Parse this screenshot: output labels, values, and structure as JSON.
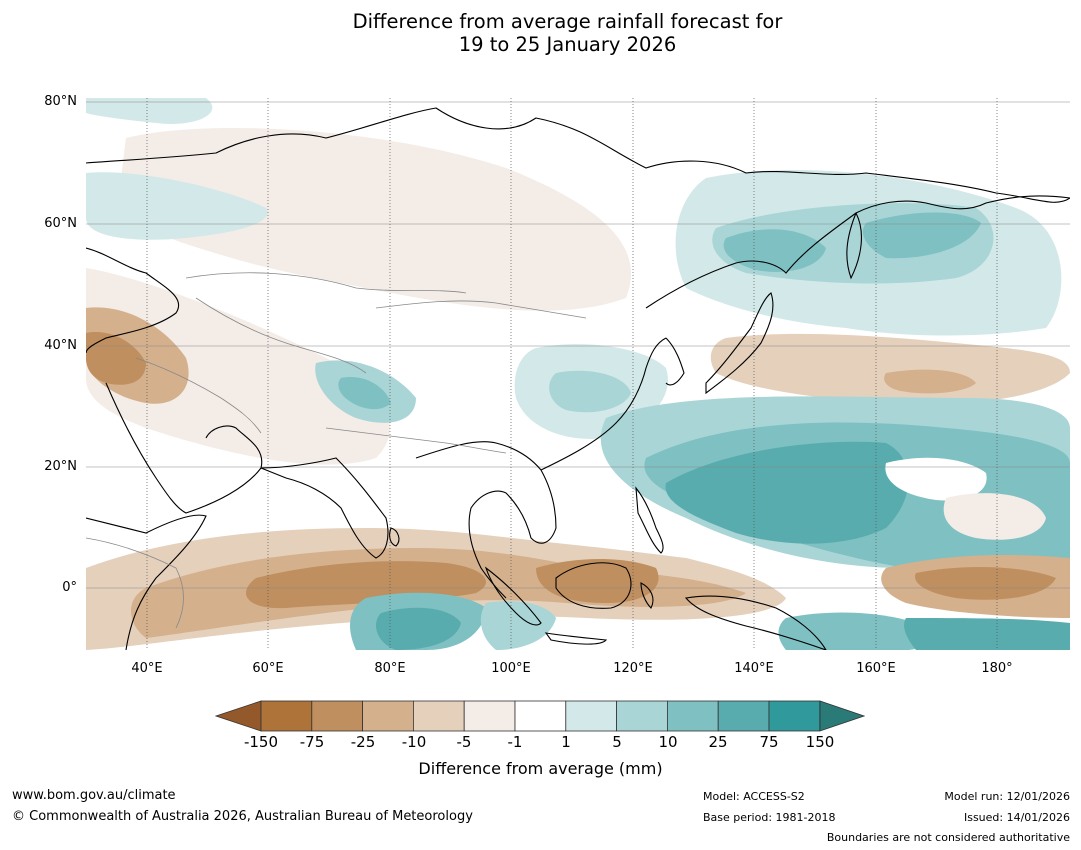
{
  "title": {
    "line1": "Difference from average rainfall forecast for",
    "line2": "19 to 25 January 2026"
  },
  "axes": {
    "lat_labels": [
      "80°N",
      "60°N",
      "40°N",
      "20°N",
      "0°"
    ],
    "lon_labels": [
      "40°E",
      "60°E",
      "80°E",
      "100°E",
      "120°E",
      "140°E",
      "160°E",
      "180°"
    ]
  },
  "legend": {
    "title": "Difference from average (mm)",
    "ticks": [
      "-150",
      "-75",
      "-25",
      "-10",
      "-5",
      "-1",
      "1",
      "5",
      "10",
      "25",
      "75",
      "150"
    ],
    "colors": [
      "#ad7339",
      "#bf8f5f",
      "#d4b08c",
      "#e5d0bc",
      "#f4ece7",
      "#ffffff",
      "#d3e8e8",
      "#a9d5d6",
      "#7fc0c2",
      "#58acae",
      "#2f999b"
    ],
    "under_color": "#94592a",
    "over_color": "#2a7a77"
  },
  "footer": {
    "website": "www.bom.gov.au/climate",
    "copyright": "© Commonwealth of Australia 2026, Australian Bureau of Meteorology",
    "model": "Model: ACCESS-S2",
    "base_period": "Base period: 1981-2018",
    "model_run": "Model run: 12/01/2026",
    "issued": "Issued: 14/01/2026",
    "disclaimer": "Boundaries are not considered authoritative"
  }
}
